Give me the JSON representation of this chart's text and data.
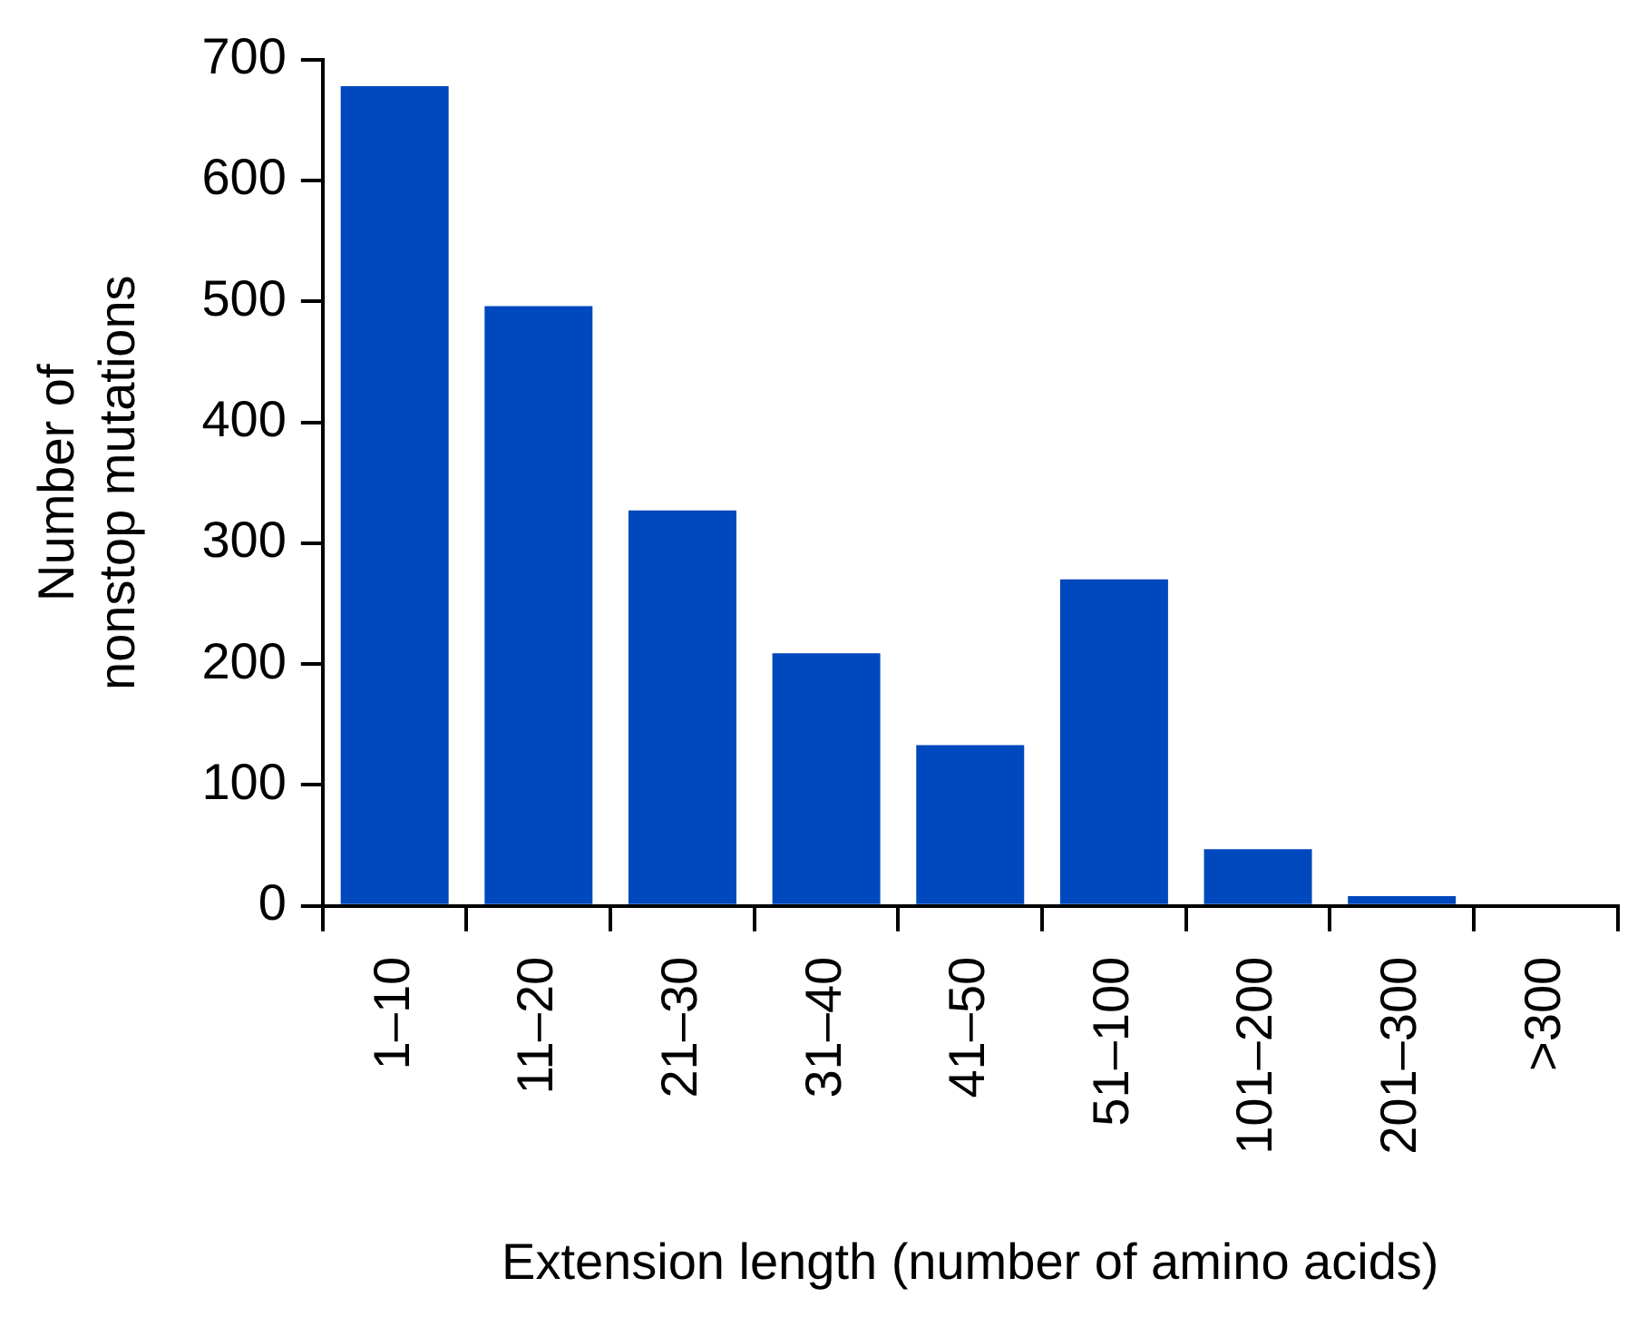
{
  "chart_data": {
    "type": "bar",
    "xlabel": "Extension length (number of amino acids)",
    "ylabel": "Number of\nnonstop mutations",
    "categories": [
      "1–10",
      "11–20",
      "21–30",
      "31–40",
      "41–50",
      "51–100",
      "101–200",
      "201–300",
      ">300"
    ],
    "values": [
      678,
      496,
      327,
      209,
      133,
      270,
      47,
      8,
      0
    ],
    "color": "#0048bd",
    "ylim": [
      0,
      700
    ],
    "yticks": [
      0,
      100,
      200,
      300,
      400,
      500,
      600,
      700
    ],
    "grid": false,
    "legend": false
  }
}
